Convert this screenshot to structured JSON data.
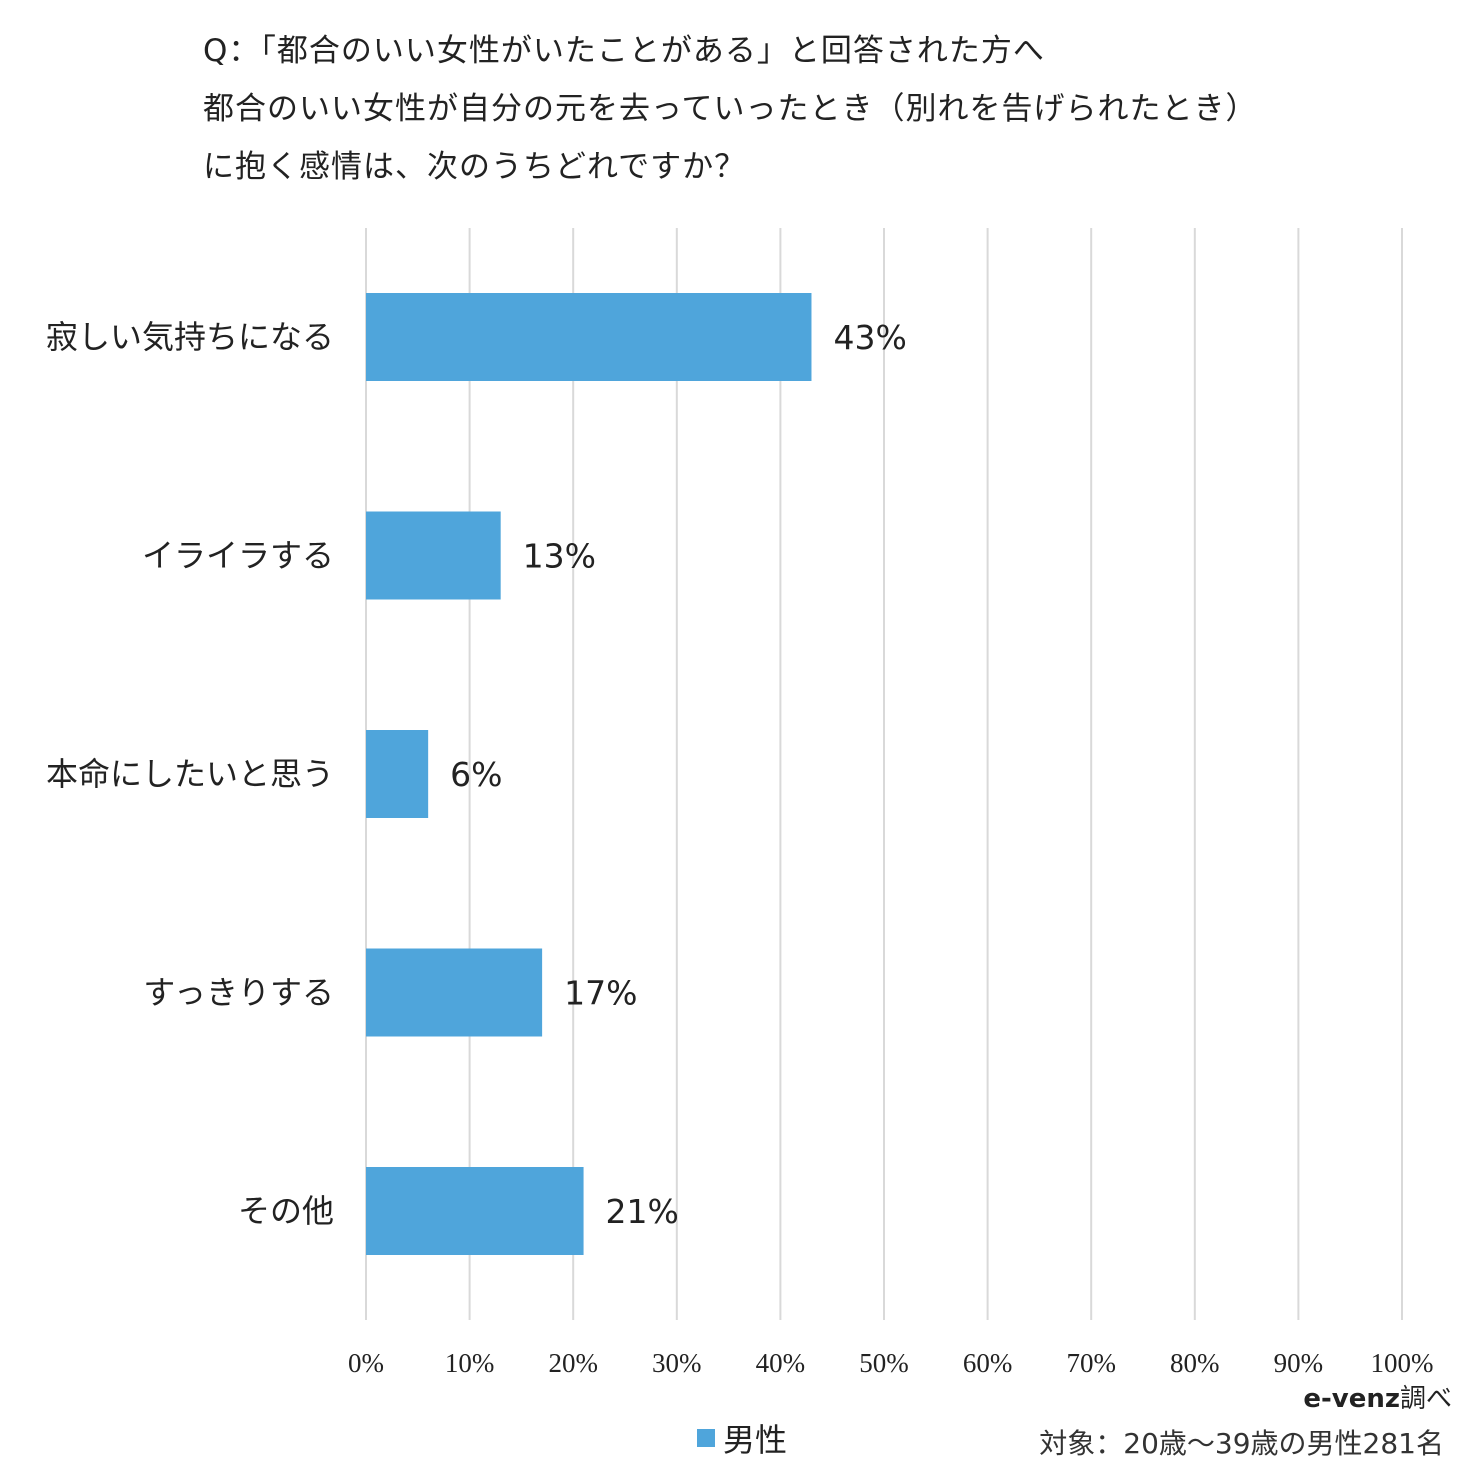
{
  "chart_data": {
    "type": "bar",
    "orientation": "horizontal",
    "title_lines": [
      "Q：「都合のいい女性がいたことがある」と回答された方へ",
      "都合のいい女性が自分の元を去っていったとき（別れを告げられたとき）",
      "に抱く感情は、次のうちどれですか？"
    ],
    "categories": [
      "寂しい気持ちになる",
      "イライラする",
      "本命にしたいと思う",
      "すっきりする",
      "その他"
    ],
    "series": [
      {
        "name": "男性",
        "values": [
          43,
          13,
          6,
          17,
          21
        ],
        "color": "#4FA5DB"
      }
    ],
    "data_labels": [
      "43%",
      "13%",
      "6%",
      "17%",
      "21%"
    ],
    "xlim": [
      0,
      100
    ],
    "xticks": [
      "0%",
      "10%",
      "20%",
      "30%",
      "40%",
      "50%",
      "60%",
      "70%",
      "80%",
      "90%",
      "100%"
    ],
    "grid": true,
    "legend_position": "bottom"
  },
  "source": {
    "brand": "e-venz",
    "suffix": "調べ"
  },
  "target_note": "対象：20歳〜39歳の男性281名"
}
